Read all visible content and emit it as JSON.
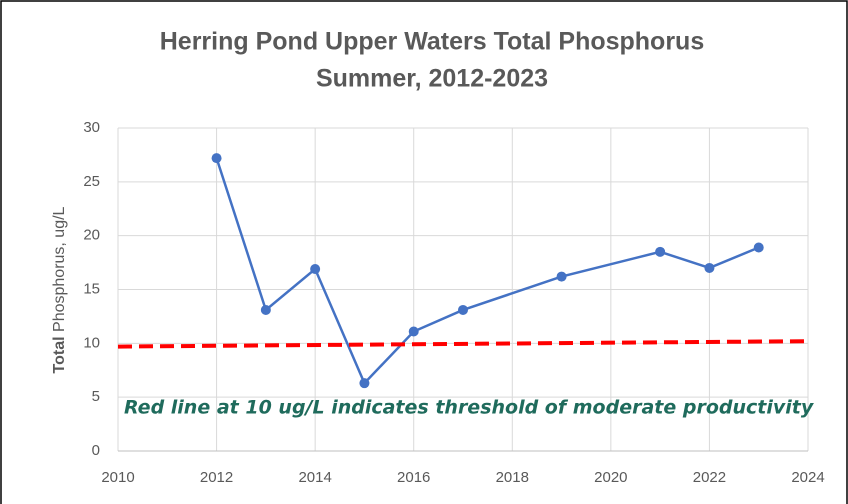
{
  "chart_data": {
    "type": "line",
    "title": [
      "Herring Pond Upper Waters Total Phosphorus",
      "Summer, 2012-2023"
    ],
    "y_label_bold": "Total",
    "y_label": "Phosphorus, ug/L",
    "annotation": "Red line at 10 ug/L indicates threshold of moderate productivity",
    "series": [
      {
        "color": "#4472c4",
        "x": [
          2012,
          2013,
          2014,
          2015,
          2016,
          2017,
          2019,
          2021,
          2022,
          2023
        ],
        "values": [
          27.2,
          13.1,
          16.9,
          6.3,
          11.1,
          13.1,
          16.2,
          18.5,
          17.0,
          18.9
        ],
        "markers": true,
        "dashed": false
      },
      {
        "color": "#ff0000",
        "x": [
          2010,
          2024
        ],
        "values": [
          9.7,
          10.2
        ],
        "markers": false,
        "dashed": true
      }
    ],
    "xlim": [
      2010,
      2024
    ],
    "xticks": [
      2010,
      2012,
      2014,
      2016,
      2018,
      2020,
      2022,
      2024
    ],
    "ylim": [
      0,
      30
    ],
    "yticks": [
      0,
      5,
      10,
      15,
      20,
      25,
      30
    ],
    "grid": true
  }
}
